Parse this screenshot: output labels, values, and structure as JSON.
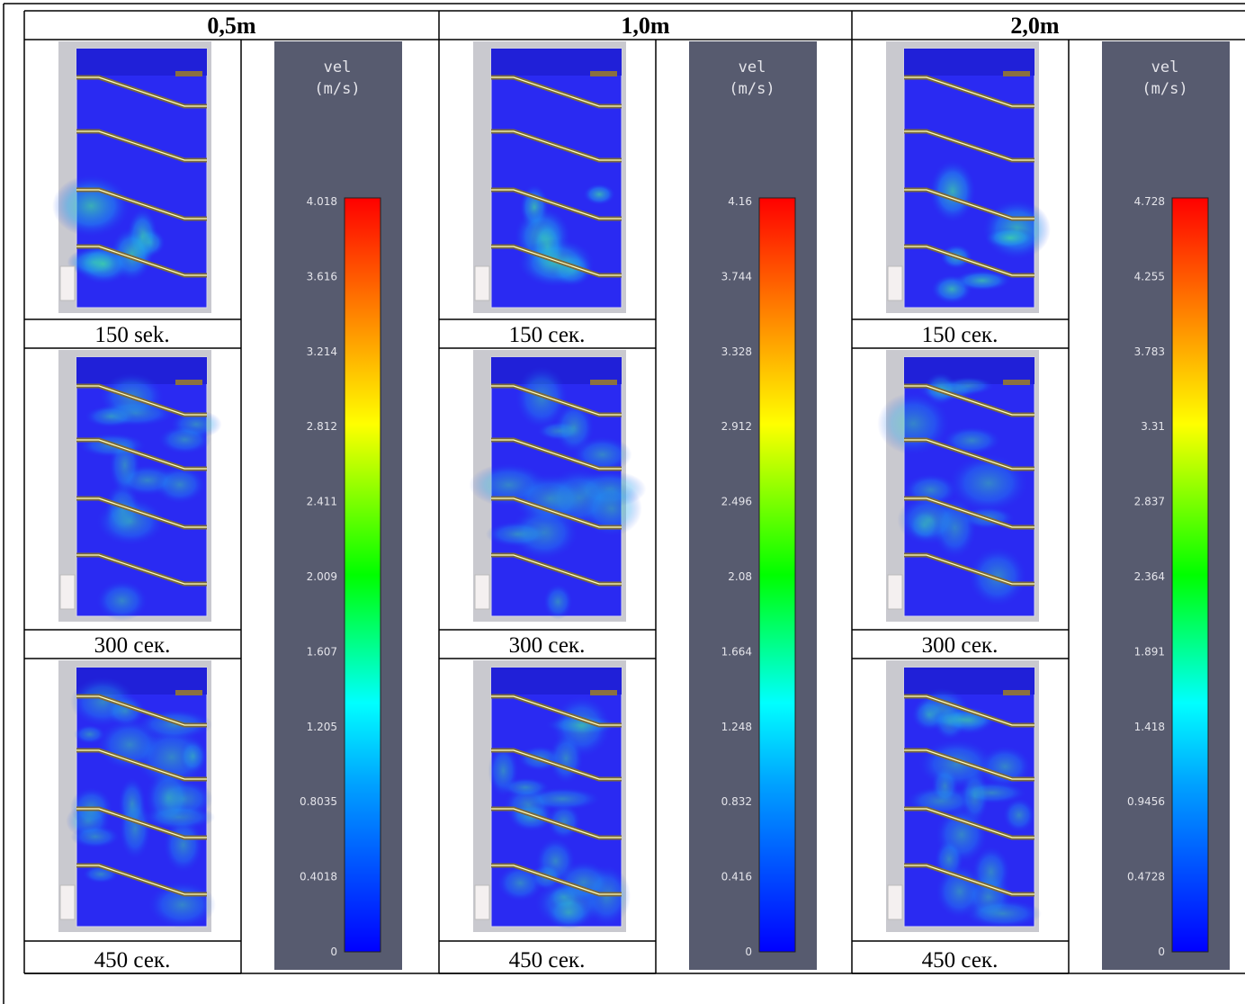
{
  "table": {
    "headers": [
      "0,5m",
      "1,0m",
      "2,0m"
    ],
    "columns": [
      {
        "captions": [
          "150 sek.",
          "300 сек.",
          "450 сек."
        ],
        "colorbar": {
          "title": "vel",
          "unit": "(m/s)",
          "ticks": [
            "4.018",
            "3.616",
            "3.214",
            "2.812",
            "2.411",
            "2.009",
            "1.607",
            "1.205",
            "0.8035",
            "0.4018",
            "0"
          ]
        }
      },
      {
        "captions": [
          "150 сек.",
          "300 сек.",
          "450 сек."
        ],
        "colorbar": {
          "title": "vel",
          "unit": "(m/s)",
          "ticks": [
            "4.16",
            "3.744",
            "3.328",
            "2.912",
            "2.496",
            "2.08",
            "1.664",
            "1.248",
            "0.832",
            "0.416",
            "0"
          ]
        }
      },
      {
        "captions": [
          "150 сек.",
          "300 сек.",
          "450 сек."
        ],
        "colorbar": {
          "title": "vel",
          "unit": "(m/s)",
          "ticks": [
            "4.728",
            "4.255",
            "3.783",
            "3.31",
            "2.837",
            "2.364",
            "1.891",
            "1.418",
            "0.9456",
            "0.4728",
            "0"
          ]
        }
      }
    ]
  }
}
